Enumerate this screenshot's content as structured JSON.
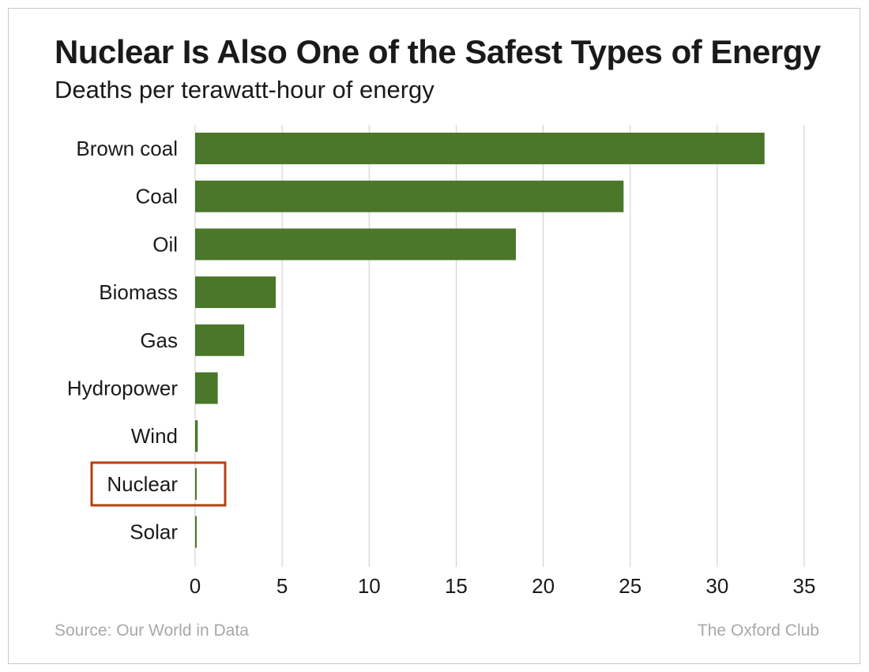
{
  "title": "Nuclear Is Also One of the Safest Types of Energy",
  "subtitle": "Deaths per terawatt-hour of energy",
  "source": "Source: Our World in Data",
  "brand": "The Oxford Club",
  "colors": {
    "bar": "#4a7729",
    "highlight": "#b5400f",
    "grid": "#cccccc",
    "text": "#1a1a1a"
  },
  "chart_data": {
    "type": "bar",
    "orientation": "horizontal",
    "title": "Nuclear Is Also One of the Safest Types of Energy",
    "subtitle": "Deaths per terawatt-hour of energy",
    "xlabel": "",
    "ylabel": "",
    "xlim": [
      0,
      35
    ],
    "xticks": [
      0,
      5,
      10,
      15,
      20,
      25,
      30,
      35
    ],
    "grid": true,
    "categories": [
      "Brown coal",
      "Coal",
      "Oil",
      "Biomass",
      "Gas",
      "Hydropower",
      "Wind",
      "Nuclear",
      "Solar"
    ],
    "values": [
      32.72,
      24.62,
      18.43,
      4.63,
      2.82,
      1.3,
      0.15,
      0.07,
      0.02
    ],
    "highlighted": "Nuclear"
  }
}
